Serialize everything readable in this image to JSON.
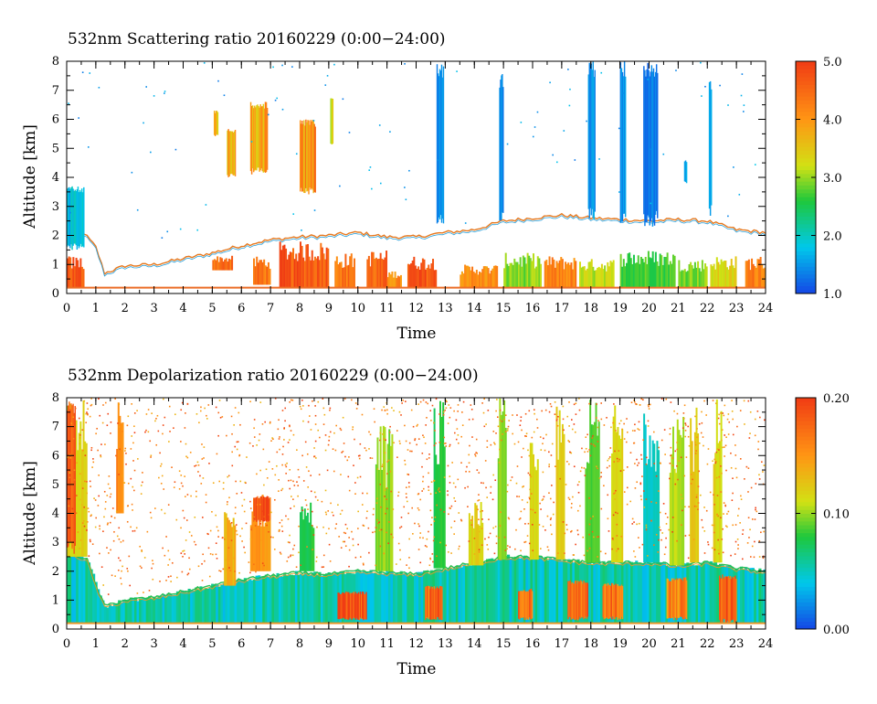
{
  "chart_data": [
    {
      "type": "heatmap",
      "title": "532nm Scattering ratio  20160229 (0:00−24:00)",
      "xlabel": "Time",
      "ylabel": "Altitude [km]",
      "xlim": [
        0,
        24
      ],
      "ylim": [
        0,
        8
      ],
      "xticks": [
        "0",
        "1",
        "2",
        "3",
        "4",
        "5",
        "6",
        "7",
        "8",
        "9",
        "10",
        "11",
        "12",
        "13",
        "14",
        "15",
        "16",
        "17",
        "18",
        "19",
        "20",
        "21",
        "22",
        "23",
        "24"
      ],
      "yticks": [
        "0",
        "1",
        "2",
        "3",
        "4",
        "5",
        "6",
        "7",
        "8"
      ],
      "colorbar": {
        "min": 1.0,
        "max": 5.0,
        "ticks": [
          "1.0",
          "2.0",
          "3.0",
          "4.0",
          "5.0"
        ]
      },
      "boundary_layer_top_km": [
        [
          0,
          2.6
        ],
        [
          0.5,
          2.2
        ],
        [
          1,
          1.6
        ],
        [
          1.3,
          0.7
        ],
        [
          2,
          0.95
        ],
        [
          3,
          1.0
        ],
        [
          4,
          1.2
        ],
        [
          5,
          1.4
        ],
        [
          6,
          1.65
        ],
        [
          7,
          1.85
        ],
        [
          8,
          1.95
        ],
        [
          9,
          2.0
        ],
        [
          10,
          2.1
        ],
        [
          11,
          1.95
        ],
        [
          12,
          1.95
        ],
        [
          13,
          2.1
        ],
        [
          14,
          2.2
        ],
        [
          15,
          2.5
        ],
        [
          16,
          2.6
        ],
        [
          17,
          2.7
        ],
        [
          18,
          2.6
        ],
        [
          19,
          2.55
        ],
        [
          20,
          2.5
        ],
        [
          21,
          2.55
        ],
        [
          22,
          2.5
        ],
        [
          23,
          2.2
        ],
        [
          24,
          2.1
        ]
      ],
      "aerosol_regions": [
        {
          "t0": 0.0,
          "t1": 0.6,
          "z0": 0.2,
          "z1": 1.3,
          "value": 4.8
        },
        {
          "t0": 5.0,
          "t1": 5.7,
          "z0": 0.8,
          "z1": 1.3,
          "value": 4.6
        },
        {
          "t0": 6.4,
          "t1": 7.0,
          "z0": 0.3,
          "z1": 1.3,
          "value": 4.5
        },
        {
          "t0": 7.3,
          "t1": 9.0,
          "z0": 0.2,
          "z1": 1.8,
          "value": 4.8
        },
        {
          "t0": 9.2,
          "t1": 9.9,
          "z0": 0.2,
          "z1": 1.4,
          "value": 4.5
        },
        {
          "t0": 10.3,
          "t1": 11.0,
          "z0": 0.2,
          "z1": 1.5,
          "value": 4.6
        },
        {
          "t0": 11.0,
          "t1": 11.5,
          "z0": 0.2,
          "z1": 0.8,
          "value": 4.2
        },
        {
          "t0": 11.7,
          "t1": 12.7,
          "z0": 0.2,
          "z1": 1.3,
          "value": 4.8
        },
        {
          "t0": 13.5,
          "t1": 14.8,
          "z0": 0.2,
          "z1": 1.0,
          "value": 4.2
        },
        {
          "t0": 15.0,
          "t1": 16.3,
          "z0": 0.2,
          "z1": 1.4,
          "value": 3.0
        },
        {
          "t0": 16.4,
          "t1": 17.5,
          "z0": 0.2,
          "z1": 1.3,
          "value": 4.3
        },
        {
          "t0": 17.6,
          "t1": 18.8,
          "z0": 0.2,
          "z1": 1.2,
          "value": 3.2
        },
        {
          "t0": 19.0,
          "t1": 20.9,
          "z0": 0.2,
          "z1": 1.5,
          "value": 2.8
        },
        {
          "t0": 21.0,
          "t1": 22.0,
          "z0": 0.2,
          "z1": 1.2,
          "value": 3.0
        },
        {
          "t0": 22.1,
          "t1": 23.0,
          "z0": 0.2,
          "z1": 1.3,
          "value": 3.4
        },
        {
          "t0": 23.3,
          "t1": 24.0,
          "z0": 0.2,
          "z1": 1.3,
          "value": 4.4
        }
      ],
      "cloud_features": [
        {
          "t0": 0.0,
          "t1": 0.6,
          "z0": 1.5,
          "z1": 3.7,
          "value": 1.8
        },
        {
          "t0": 5.05,
          "t1": 5.2,
          "z0": 5.4,
          "z1": 6.3,
          "value": 3.5
        },
        {
          "t0": 5.5,
          "t1": 5.8,
          "z0": 4.0,
          "z1": 5.7,
          "value": 3.8
        },
        {
          "t0": 6.3,
          "t1": 6.9,
          "z0": 4.1,
          "z1": 6.6,
          "value": 3.8
        },
        {
          "t0": 8.0,
          "t1": 8.55,
          "z0": 3.4,
          "z1": 6.0,
          "value": 4.0
        },
        {
          "t0": 9.05,
          "t1": 9.15,
          "z0": 5.0,
          "z1": 6.8,
          "value": 3.2
        },
        {
          "t0": 12.7,
          "t1": 12.95,
          "z0": 2.2,
          "z1": 8.0,
          "value": 1.5
        },
        {
          "t0": 14.85,
          "t1": 15.0,
          "z0": 2.3,
          "z1": 7.6,
          "value": 1.4
        },
        {
          "t0": 17.9,
          "t1": 18.15,
          "z0": 2.4,
          "z1": 8.0,
          "value": 1.5
        },
        {
          "t0": 19.0,
          "t1": 19.2,
          "z0": 2.4,
          "z1": 8.0,
          "value": 1.5
        },
        {
          "t0": 19.8,
          "t1": 20.3,
          "z0": 2.3,
          "z1": 8.0,
          "value": 1.3
        },
        {
          "t0": 21.2,
          "t1": 21.3,
          "z0": 3.8,
          "z1": 4.6,
          "value": 1.5
        },
        {
          "t0": 22.05,
          "t1": 22.15,
          "z0": 2.6,
          "z1": 7.4,
          "value": 1.5
        }
      ]
    },
    {
      "type": "heatmap",
      "title": "532nm Depolarization ratio  20160229 (0:00−24:00)",
      "xlabel": "Time",
      "ylabel": "Altitude [km]",
      "xlim": [
        0,
        24
      ],
      "ylim": [
        0,
        8
      ],
      "xticks": [
        "0",
        "1",
        "2",
        "3",
        "4",
        "5",
        "6",
        "7",
        "8",
        "9",
        "10",
        "11",
        "12",
        "13",
        "14",
        "15",
        "16",
        "17",
        "18",
        "19",
        "20",
        "21",
        "22",
        "23",
        "24"
      ],
      "yticks": [
        "0",
        "1",
        "2",
        "3",
        "4",
        "5",
        "6",
        "7",
        "8"
      ],
      "colorbar": {
        "min": 0.0,
        "max": 0.2,
        "ticks": [
          "0.00",
          "0.10",
          "0.20"
        ]
      },
      "boundary_layer_top_km": [
        [
          0,
          2.7
        ],
        [
          0.7,
          2.4
        ],
        [
          1,
          1.5
        ],
        [
          1.3,
          0.8
        ],
        [
          2,
          1.0
        ],
        [
          3,
          1.1
        ],
        [
          4,
          1.3
        ],
        [
          5,
          1.5
        ],
        [
          6,
          1.7
        ],
        [
          7,
          1.85
        ],
        [
          8,
          1.95
        ],
        [
          9,
          1.9
        ],
        [
          10,
          2.0
        ],
        [
          11,
          1.95
        ],
        [
          12,
          1.9
        ],
        [
          13,
          2.1
        ],
        [
          14,
          2.3
        ],
        [
          15,
          2.5
        ],
        [
          16,
          2.5
        ],
        [
          17,
          2.4
        ],
        [
          18,
          2.3
        ],
        [
          19,
          2.3
        ],
        [
          20,
          2.3
        ],
        [
          21,
          2.2
        ],
        [
          22,
          2.3
        ],
        [
          23,
          2.1
        ],
        [
          24,
          2.0
        ]
      ],
      "dense_columns": [
        {
          "t0": 0.0,
          "t1": 0.7,
          "z0": 2.5,
          "z1": 8.0,
          "value": 0.12
        },
        {
          "t0": 1.7,
          "t1": 1.95,
          "z0": 4.0,
          "z1": 8.0,
          "value": 0.16
        },
        {
          "t0": 5.4,
          "t1": 5.8,
          "z0": 1.5,
          "z1": 4.2,
          "value": 0.14
        },
        {
          "t0": 6.3,
          "t1": 7.0,
          "z0": 2.0,
          "z1": 4.7,
          "value": 0.15
        },
        {
          "t0": 8.0,
          "t1": 8.5,
          "z0": 2.0,
          "z1": 4.5,
          "value": 0.08
        },
        {
          "t0": 10.6,
          "t1": 11.2,
          "z0": 2.0,
          "z1": 7.2,
          "value": 0.1
        },
        {
          "t0": 12.6,
          "t1": 13.0,
          "z0": 2.1,
          "z1": 8.0,
          "value": 0.08
        },
        {
          "t0": 13.8,
          "t1": 14.3,
          "z0": 2.2,
          "z1": 4.5,
          "value": 0.12
        },
        {
          "t0": 14.8,
          "t1": 15.1,
          "z0": 2.4,
          "z1": 8.0,
          "value": 0.1
        },
        {
          "t0": 15.9,
          "t1": 16.2,
          "z0": 2.4,
          "z1": 6.5,
          "value": 0.12
        },
        {
          "t0": 16.8,
          "t1": 17.1,
          "z0": 2.4,
          "z1": 8.0,
          "value": 0.12
        },
        {
          "t0": 17.8,
          "t1": 18.3,
          "z0": 2.3,
          "z1": 8.0,
          "value": 0.09
        },
        {
          "t0": 18.7,
          "t1": 19.1,
          "z0": 2.3,
          "z1": 8.0,
          "value": 0.12
        },
        {
          "t0": 19.8,
          "t1": 20.35,
          "z0": 2.3,
          "z1": 8.0,
          "value": 0.05
        },
        {
          "t0": 20.7,
          "t1": 21.2,
          "z0": 2.2,
          "z1": 8.0,
          "value": 0.11
        },
        {
          "t0": 21.4,
          "t1": 21.7,
          "z0": 2.3,
          "z1": 8.0,
          "value": 0.13
        },
        {
          "t0": 22.2,
          "t1": 22.5,
          "z0": 2.3,
          "z1": 8.0,
          "value": 0.12
        }
      ],
      "hotspots": [
        {
          "t0": 0.0,
          "t1": 0.3,
          "z0": 2.5,
          "z1": 8.0,
          "value": 0.18
        },
        {
          "t0": 6.4,
          "t1": 7.0,
          "z0": 3.7,
          "z1": 4.6,
          "value": 0.19
        },
        {
          "t0": 9.3,
          "t1": 10.3,
          "z0": 0.3,
          "z1": 1.3,
          "value": 0.19
        },
        {
          "t0": 12.3,
          "t1": 12.9,
          "z0": 0.3,
          "z1": 1.5,
          "value": 0.18
        },
        {
          "t0": 15.5,
          "t1": 16.0,
          "z0": 0.3,
          "z1": 1.4,
          "value": 0.17
        },
        {
          "t0": 17.2,
          "t1": 17.9,
          "z0": 0.3,
          "z1": 1.7,
          "value": 0.18
        },
        {
          "t0": 18.4,
          "t1": 19.1,
          "z0": 0.3,
          "z1": 1.6,
          "value": 0.17
        },
        {
          "t0": 20.6,
          "t1": 21.3,
          "z0": 0.3,
          "z1": 1.8,
          "value": 0.16
        },
        {
          "t0": 22.4,
          "t1": 23.0,
          "z0": 0.2,
          "z1": 1.9,
          "value": 0.18
        }
      ]
    }
  ]
}
